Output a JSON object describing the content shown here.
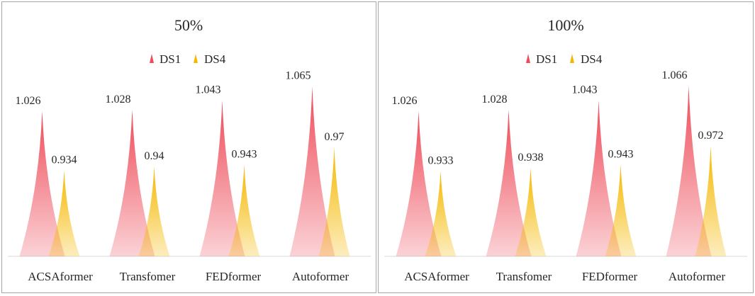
{
  "chart_data": [
    {
      "type": "bar",
      "title": "50%",
      "categories": [
        "ACSAformer",
        "Transfomer",
        "FEDformer",
        "Autoformer"
      ],
      "series": [
        {
          "name": "DS1",
          "values": [
            1.026,
            1.028,
            1.043,
            1.065
          ],
          "color": "#ee4c5a"
        },
        {
          "name": "DS4",
          "values": [
            0.934,
            0.94,
            0.943,
            0.97
          ],
          "color": "#f5b800"
        }
      ],
      "data_labels": [
        [
          "1.026",
          "1.028",
          "1.043",
          "1.065"
        ],
        [
          "0.934",
          "0.94",
          "0.943",
          "0.97"
        ]
      ],
      "ylim": [
        0.8,
        1.09
      ],
      "legend": "top-center",
      "grid": false,
      "bar_shape": "cone"
    },
    {
      "type": "bar",
      "title": "100%",
      "categories": [
        "ACSAformer",
        "Transfomer",
        "FEDformer",
        "Autoformer"
      ],
      "series": [
        {
          "name": "DS1",
          "values": [
            1.026,
            1.028,
            1.043,
            1.066
          ],
          "color": "#ee4c5a"
        },
        {
          "name": "DS4",
          "values": [
            0.933,
            0.938,
            0.943,
            0.972
          ],
          "color": "#f5b800"
        }
      ],
      "data_labels": [
        [
          "1.026",
          "1.028",
          "1.043",
          "1.066"
        ],
        [
          "0.933",
          "0.938",
          "0.943",
          "0.972"
        ]
      ],
      "ylim": [
        0.8,
        1.09
      ],
      "legend": "top-center",
      "grid": false,
      "bar_shape": "cone"
    }
  ]
}
